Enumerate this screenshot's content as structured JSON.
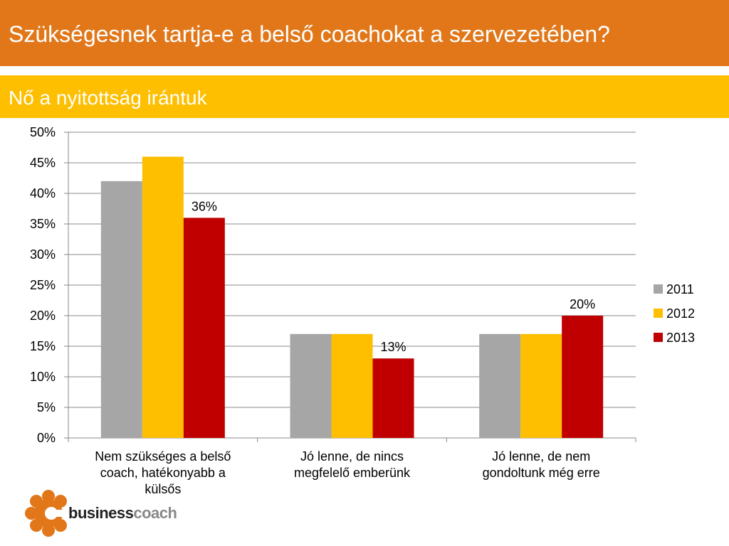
{
  "header": {
    "title": "Szükségesnek tartja-e a belső coachokat a szervezetében?",
    "subtitle": "Nő a nyitottság irántuk"
  },
  "colors": {
    "title_bar": "#e2771a",
    "subtitle_bar": "#fdbf00",
    "series_2011": "#a6a6a6",
    "series_2012": "#fdbf00",
    "series_2013": "#c00000"
  },
  "logo": {
    "word1": "business",
    "word2": "coach",
    "icon": "orange-flower-c-logo-icon"
  },
  "chart_data": {
    "type": "bar",
    "categories": [
      [
        "Nem szükséges a belső",
        "coach, hatékonyabb a",
        "külsős"
      ],
      [
        "Jó lenne, de nincs",
        "megfelelő emberünk"
      ],
      [
        "Jó lenne, de nem",
        "gondoltunk még erre"
      ]
    ],
    "series": [
      {
        "name": "2011",
        "values": [
          42,
          17,
          17
        ],
        "color": "#a6a6a6"
      },
      {
        "name": "2012",
        "values": [
          46,
          17,
          17
        ],
        "color": "#fdbf00"
      },
      {
        "name": "2013",
        "values": [
          36,
          13,
          20
        ],
        "color": "#c00000"
      }
    ],
    "data_labels": [
      {
        "series": 2,
        "category": 0,
        "text": "36%"
      },
      {
        "series": 2,
        "category": 1,
        "text": "13%"
      },
      {
        "series": 2,
        "category": 2,
        "text": "20%"
      }
    ],
    "ylim": [
      0,
      50
    ],
    "yticks": [
      "0%",
      "5%",
      "10%",
      "15%",
      "20%",
      "25%",
      "30%",
      "35%",
      "40%",
      "45%",
      "50%"
    ],
    "grid": true,
    "legend": "right"
  }
}
